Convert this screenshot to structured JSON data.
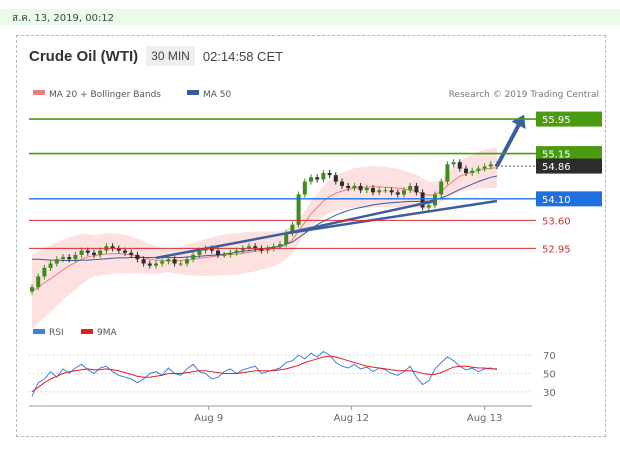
{
  "header": {
    "timestamp": "ส.ค. 13, 2019, 00:12",
    "title": "Crude Oil (WTI)",
    "timeframe": "30 MIN",
    "clock": "02:14:58 CET"
  },
  "legend": {
    "ma20": "MA 20 + Bollinger Bands",
    "ma50": "MA 50",
    "credit": "Research © 2019 Trading Central",
    "rsi": "RSI",
    "ma9": "9MA"
  },
  "colors": {
    "green": "#4a9a12",
    "red": "#d32f2f",
    "blue": "#1f6fe0",
    "dark": "#2d2d2d",
    "ma50": "#3a5a9a",
    "ma20": "#e88080",
    "band": "#fde0e0",
    "trend": "#3b5ea0"
  },
  "chart_data": [
    {
      "type": "candlestick",
      "x_ticks": [
        "Aug 9",
        "Aug 12",
        "Aug 13"
      ],
      "ylim": [
        51.8,
        56.3
      ],
      "levels": [
        {
          "value": 55.95,
          "label": "55.95",
          "role": "target",
          "color": "#4a9a12",
          "style": "box"
        },
        {
          "value": 55.15,
          "label": "55.15",
          "role": "resistance",
          "color": "#4a9a12",
          "style": "box"
        },
        {
          "value": 54.86,
          "label": "54.86",
          "role": "last",
          "color": "#2d2d2d",
          "style": "box"
        },
        {
          "value": 54.1,
          "label": "54.10",
          "role": "pivot",
          "color": "#1f6fe0",
          "style": "box"
        },
        {
          "value": 53.6,
          "label": "53.60",
          "role": "support",
          "color": "#d32f2f",
          "style": "text"
        },
        {
          "value": 52.95,
          "label": "52.95",
          "role": "support",
          "color": "#d32f2f",
          "style": "text"
        }
      ],
      "close": [
        52.05,
        52.3,
        52.5,
        52.6,
        52.7,
        52.75,
        52.7,
        52.8,
        52.9,
        52.85,
        52.8,
        52.9,
        53.0,
        52.95,
        52.9,
        52.85,
        52.8,
        52.7,
        52.6,
        52.55,
        52.6,
        52.65,
        52.7,
        52.6,
        52.6,
        52.7,
        52.8,
        52.9,
        52.95,
        52.9,
        52.8,
        52.8,
        52.85,
        52.9,
        52.95,
        53.0,
        52.95,
        52.9,
        52.95,
        53.0,
        53.05,
        53.3,
        53.5,
        54.2,
        54.5,
        54.6,
        54.55,
        54.7,
        54.65,
        54.5,
        54.4,
        54.35,
        54.4,
        54.3,
        54.35,
        54.25,
        54.3,
        54.3,
        54.25,
        54.2,
        54.3,
        54.4,
        54.25,
        53.9,
        53.95,
        54.2,
        54.5,
        54.9,
        54.95,
        54.8,
        54.7,
        54.75,
        54.8,
        54.85,
        54.9,
        54.86
      ],
      "ma20": [
        51.95,
        52.05,
        52.15,
        52.25,
        52.35,
        52.45,
        52.55,
        52.62,
        52.7,
        52.75,
        52.78,
        52.8,
        52.82,
        52.83,
        52.83,
        52.82,
        52.8,
        52.77,
        52.74,
        52.7,
        52.68,
        52.67,
        52.66,
        52.66,
        52.67,
        52.68,
        52.7,
        52.72,
        52.74,
        52.76,
        52.78,
        52.8,
        52.81,
        52.82,
        52.84,
        52.86,
        52.88,
        52.9,
        52.92,
        52.94,
        52.97,
        53.05,
        53.15,
        53.35,
        53.55,
        53.75,
        53.9,
        54.05,
        54.15,
        54.23,
        54.28,
        54.32,
        54.35,
        54.36,
        54.37,
        54.38,
        54.38,
        54.37,
        54.36,
        54.35,
        54.33,
        54.3,
        54.28,
        54.22,
        54.18,
        54.2,
        54.28,
        54.4,
        54.52,
        54.62,
        54.68,
        54.72,
        54.76,
        54.79,
        54.81,
        54.82
      ],
      "ma50": [
        52.7,
        52.7,
        52.69,
        52.68,
        52.68,
        52.67,
        52.67,
        52.67,
        52.68,
        52.68,
        52.69,
        52.7,
        52.71,
        52.72,
        52.73,
        52.73,
        52.74,
        52.74,
        52.74,
        52.74,
        52.74,
        52.74,
        52.74,
        52.74,
        52.74,
        52.75,
        52.76,
        52.77,
        52.78,
        52.79,
        52.8,
        52.82,
        52.84,
        52.86,
        52.88,
        52.9,
        52.92,
        52.94,
        52.96,
        52.98,
        53.0,
        53.05,
        53.1,
        53.2,
        53.3,
        53.4,
        53.5,
        53.58,
        53.65,
        53.72,
        53.78,
        53.83,
        53.87,
        53.9,
        53.93,
        53.96,
        53.98,
        54.0,
        54.01,
        54.02,
        54.03,
        54.04,
        54.04,
        54.04,
        54.05,
        54.08,
        54.12,
        54.18,
        54.25,
        54.32,
        54.38,
        54.44,
        54.5,
        54.55,
        54.6,
        54.63
      ],
      "trendlines": [
        {
          "from": [
            20,
            52.73
          ],
          "to": [
            41,
            53.3
          ]
        },
        {
          "from": [
            41,
            53.3
          ],
          "to": [
            65,
            54.05
          ]
        },
        {
          "from": [
            41,
            53.3
          ],
          "to": [
            75,
            54.05
          ]
        }
      ],
      "forecast_arrow": {
        "from": [
          75,
          54.86
        ],
        "to": [
          79,
          55.95
        ]
      }
    },
    {
      "type": "line",
      "title": "RSI",
      "yticks": [
        30,
        50,
        70
      ],
      "ylim": [
        20,
        80
      ],
      "series": [
        {
          "name": "RSI",
          "color": "#3f7fe0",
          "values": [
            25,
            40,
            44,
            52,
            46,
            55,
            50,
            56,
            60,
            54,
            50,
            56,
            58,
            52,
            48,
            46,
            44,
            40,
            44,
            50,
            52,
            48,
            56,
            50,
            48,
            55,
            60,
            52,
            50,
            44,
            46,
            52,
            55,
            50,
            54,
            56,
            58,
            50,
            52,
            54,
            56,
            62,
            64,
            70,
            66,
            72,
            68,
            74,
            70,
            62,
            58,
            56,
            60,
            55,
            57,
            52,
            56,
            54,
            50,
            48,
            52,
            58,
            46,
            38,
            42,
            55,
            62,
            68,
            64,
            58,
            54,
            56,
            52,
            55,
            56,
            54
          ]
        },
        {
          "name": "9MA",
          "color": "#e02020",
          "values": [
            30,
            35,
            40,
            44,
            47,
            50,
            52,
            53,
            54,
            55,
            54,
            54,
            55,
            54,
            53,
            51,
            49,
            47,
            46,
            46,
            47,
            48,
            50,
            50,
            50,
            51,
            52,
            53,
            53,
            52,
            51,
            50,
            50,
            50,
            51,
            52,
            53,
            53,
            53,
            53,
            54,
            55,
            57,
            59,
            62,
            64,
            66,
            68,
            69,
            68,
            66,
            64,
            62,
            60,
            58,
            57,
            56,
            55,
            54,
            53,
            53,
            53,
            52,
            50,
            49,
            49,
            51,
            54,
            57,
            58,
            58,
            57,
            56,
            56,
            55,
            55
          ]
        }
      ]
    }
  ]
}
